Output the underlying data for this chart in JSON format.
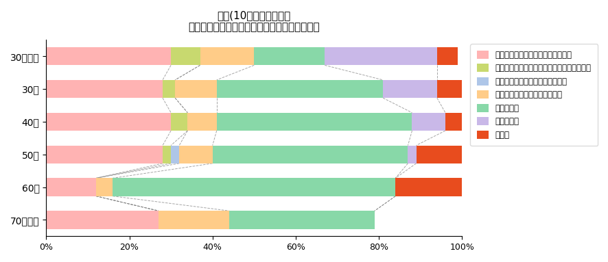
{
  "title": "年齢(10歳刻み）ごとの\n専門用語を学んだ情報源　の割合（声優以外）",
  "categories": [
    "30歳未満",
    "30代",
    "40代",
    "50代",
    "60代",
    "70代以上"
  ],
  "legend_labels": [
    "アニメ関連の専門学校や養成所など",
    "短大・大学の関連する課程（美術・芸術等）",
    "有料の通信教材やオンライン教材",
    "書籍やオンライン情報での独学",
    "先輩や上司",
    "会社の研修",
    "その他"
  ],
  "colors": [
    "#ffb3b3",
    "#c8d96f",
    "#aec6e8",
    "#ffcc88",
    "#88d8a8",
    "#c9b8e8",
    "#e84c1e"
  ],
  "data": [
    [
      0.3,
      0.07,
      0.0,
      0.13,
      0.17,
      0.27,
      0.05
    ],
    [
      0.28,
      0.03,
      0.0,
      0.1,
      0.4,
      0.13,
      0.06
    ],
    [
      0.3,
      0.04,
      0.0,
      0.07,
      0.47,
      0.08,
      0.04
    ],
    [
      0.28,
      0.02,
      0.02,
      0.08,
      0.47,
      0.02,
      0.11
    ],
    [
      0.12,
      0.0,
      0.0,
      0.04,
      0.68,
      0.0,
      0.16
    ],
    [
      0.27,
      0.0,
      0.0,
      0.17,
      0.35,
      0.0,
      0.0
    ]
  ],
  "xlim": [
    0,
    1
  ],
  "bar_height": 0.55,
  "figsize": [
    8.87,
    3.83
  ],
  "dpi": 100
}
